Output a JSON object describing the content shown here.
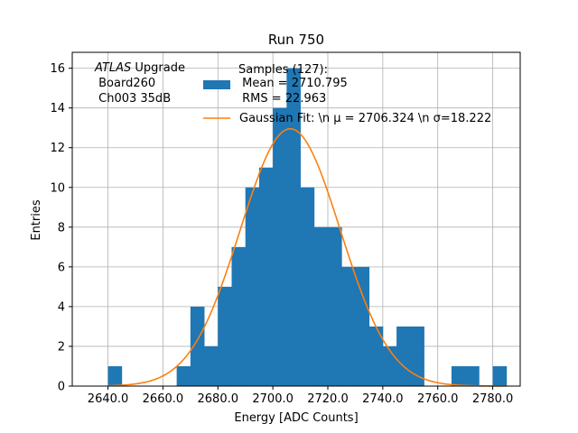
{
  "chart_data": {
    "type": "bar",
    "title": "Run 750",
    "xlabel": "Energy [ADC Counts]",
    "ylabel": "Entries",
    "xlim": [
      2627,
      2790
    ],
    "ylim": [
      0,
      16.8
    ],
    "grid": true,
    "xticks": [
      2640,
      2660,
      2680,
      2700,
      2720,
      2740,
      2760,
      2780
    ],
    "xtick_labels": [
      "2640.0",
      "2660.0",
      "2680.0",
      "2700.0",
      "2720.0",
      "2740.0",
      "2760.0",
      "2780.0"
    ],
    "yticks": [
      0,
      2,
      4,
      6,
      8,
      10,
      12,
      14,
      16
    ],
    "ytick_labels": [
      "0",
      "2",
      "4",
      "6",
      "8",
      "10",
      "12",
      "14",
      "16"
    ],
    "bar_color": "#1f77b4",
    "fit_color": "#ff7f0e",
    "histogram": {
      "bin_edges": [
        2640,
        2645,
        2650,
        2655,
        2660,
        2665,
        2670,
        2675,
        2680,
        2685,
        2690,
        2695,
        2700,
        2705,
        2710,
        2715,
        2720,
        2725,
        2730,
        2735,
        2740,
        2745,
        2750,
        2755,
        2760,
        2765,
        2770,
        2775,
        2780,
        2785
      ],
      "counts": [
        1,
        0,
        0,
        0,
        0,
        1,
        4,
        2,
        5,
        7,
        10,
        11,
        14,
        16,
        10,
        8,
        8,
        6,
        6,
        3,
        2,
        3,
        3,
        0,
        0,
        1,
        1,
        0,
        1
      ]
    },
    "gaussian_fit": {
      "amplitude": 12.95,
      "mu": 2706.324,
      "sigma": 18.222
    },
    "legend": {
      "samples_label": "Samples (127):",
      "mean_label": " Mean = 2710.795",
      "rms_label": " RMS = 22.963",
      "fit_label": "Gaussian Fit: \\n μ = 2706.324 \\n σ=18.222"
    },
    "annotation": {
      "experiment": "ATLAS",
      "experiment_suffix": " Upgrade",
      "board": " Board260",
      "channel": " Ch003 35dB"
    }
  }
}
